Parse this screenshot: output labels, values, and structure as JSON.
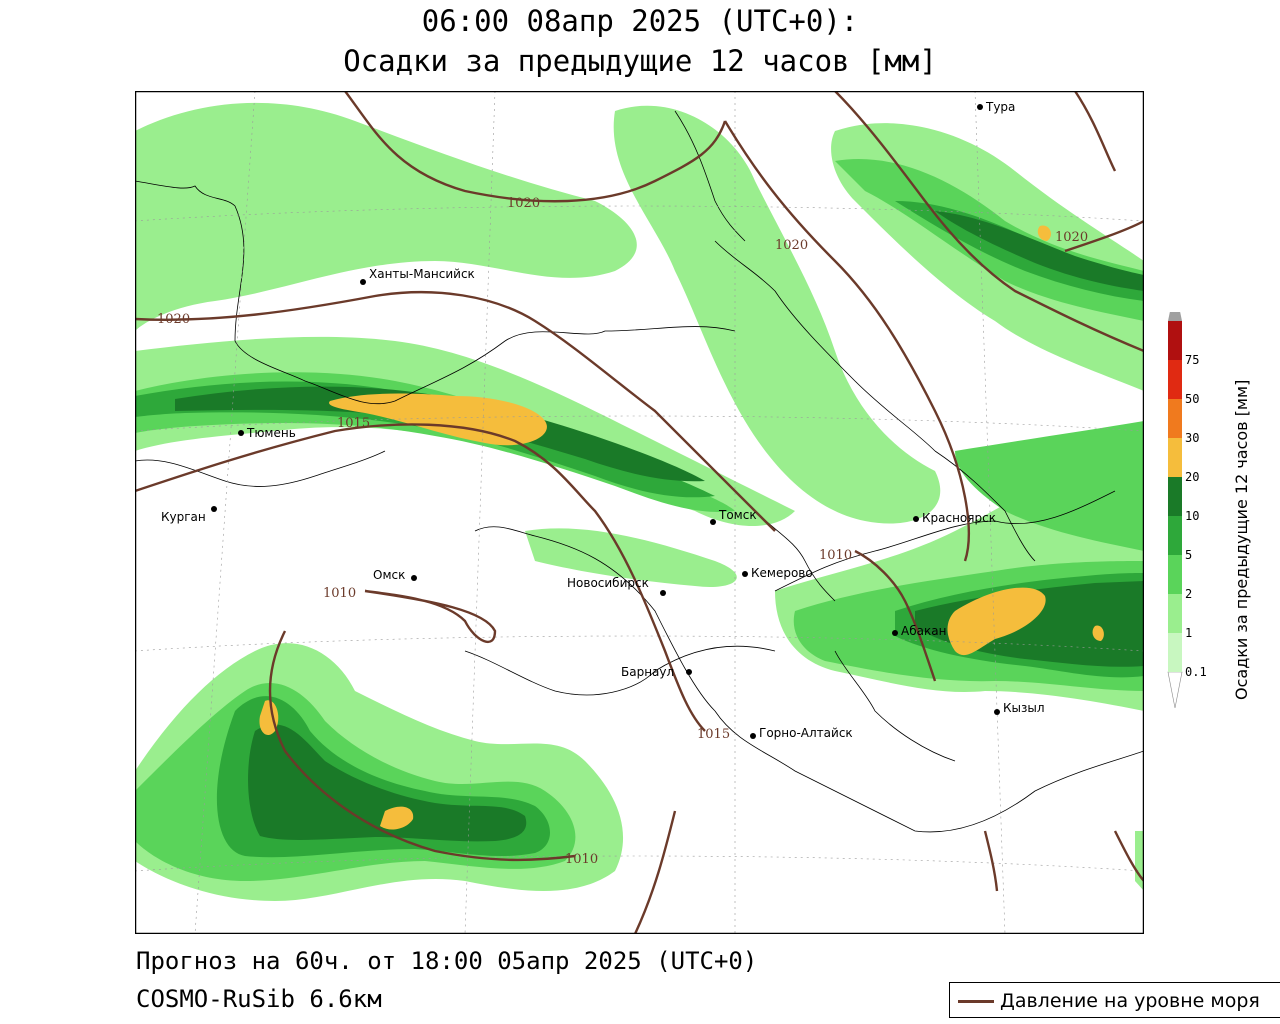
{
  "title": {
    "line1": "06:00 08апр 2025 (UTC+0):",
    "line2": "Осадки за предыдущие 12 часов [мм]"
  },
  "footer": {
    "forecast": "Прогноз на 60ч. от 18:00 05апр 2025 (UTC+0)",
    "model": "COSMO-RuSib 6.6км"
  },
  "legend": {
    "pressure_label": "Давление на уровне моря"
  },
  "colorbar": {
    "title": "Осадки за предыдущие 12 часов [мм]",
    "levels": [
      "0.1",
      "1",
      "2",
      "5",
      "10",
      "20",
      "30",
      "50",
      "75"
    ],
    "colors": [
      "#c8f7c0",
      "#9aee8e",
      "#5ad45a",
      "#2ea83a",
      "#1a7a28",
      "#f5bd3c",
      "#f07a1e",
      "#e02a12",
      "#b01010",
      "#a0a0a0"
    ]
  },
  "cities": [
    {
      "name": "Тура"
    },
    {
      "name": "Ханты-Мансийск"
    },
    {
      "name": "Тюмень"
    },
    {
      "name": "Курган"
    },
    {
      "name": "Омск"
    },
    {
      "name": "Томск"
    },
    {
      "name": "Красноярск"
    },
    {
      "name": "Новосибирск"
    },
    {
      "name": "Кемерово"
    },
    {
      "name": "Абакан"
    },
    {
      "name": "Барнаул"
    },
    {
      "name": "Кызыл"
    },
    {
      "name": "Горно-Алтайск"
    }
  ],
  "isobars": [
    "1020",
    "1020",
    "1020",
    "1015",
    "1010",
    "1010",
    "1020",
    "1015",
    "1010"
  ]
}
